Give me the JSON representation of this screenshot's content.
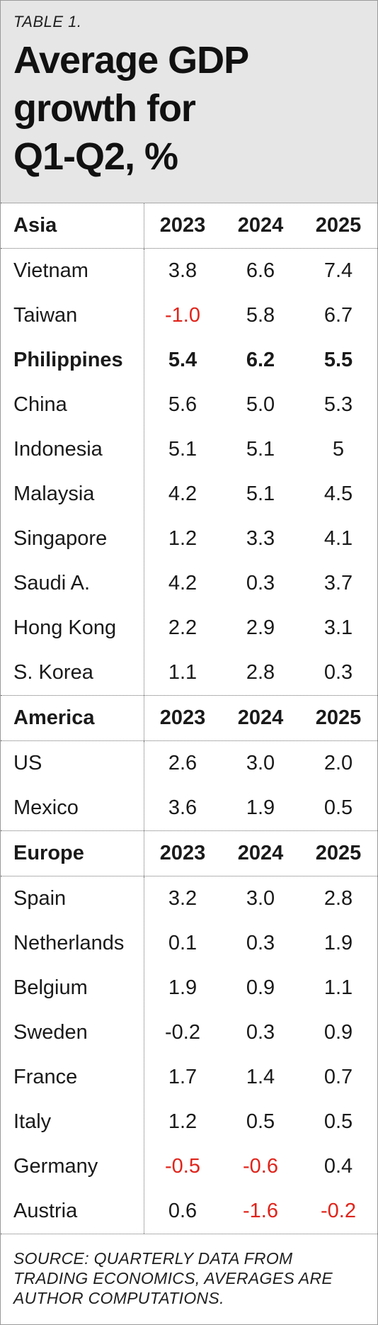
{
  "header": {
    "table_label": "TABLE 1.",
    "title_line1": "Average GDP",
    "title_line2": "growth for",
    "title_line3": "Q1-Q2, %"
  },
  "colors": {
    "header_bg": "#e6e6e6",
    "negative": "#e0241b",
    "text": "#1a1a1a"
  },
  "sections": [
    {
      "name": "Asia",
      "years": [
        "2023",
        "2024",
        "2025"
      ],
      "rows": [
        {
          "country": "Vietnam",
          "values": [
            "3.8",
            "6.6",
            "7.4"
          ]
        },
        {
          "country": "Taiwan",
          "values": [
            "-1.0",
            "5.8",
            "6.7"
          ]
        },
        {
          "country": "Philippines",
          "values": [
            "5.4",
            "6.2",
            "5.5"
          ]
        },
        {
          "country": "China",
          "values": [
            "5.6",
            "5.0",
            "5.3"
          ]
        },
        {
          "country": "Indonesia",
          "values": [
            "5.1",
            "5.1",
            "5"
          ]
        },
        {
          "country": "Malaysia",
          "values": [
            "4.2",
            "5.1",
            "4.5"
          ]
        },
        {
          "country": "Singapore",
          "values": [
            "1.2",
            "3.3",
            "4.1"
          ]
        },
        {
          "country": "Saudi A.",
          "values": [
            "4.2",
            "0.3",
            "3.7"
          ]
        },
        {
          "country": "Hong Kong",
          "values": [
            "2.2",
            "2.9",
            "3.1"
          ]
        },
        {
          "country": "S. Korea",
          "values": [
            "1.1",
            "2.8",
            "0.3"
          ]
        }
      ]
    },
    {
      "name": "America",
      "years": [
        "2023",
        "2024",
        "2025"
      ],
      "rows": [
        {
          "country": "US",
          "values": [
            "2.6",
            "3.0",
            "2.0"
          ]
        },
        {
          "country": "Mexico",
          "values": [
            "3.6",
            "1.9",
            "0.5"
          ]
        }
      ]
    },
    {
      "name": "Europe",
      "years": [
        "2023",
        "2024",
        "2025"
      ],
      "rows": [
        {
          "country": "Spain",
          "values": [
            "3.2",
            "3.0",
            "2.8"
          ]
        },
        {
          "country": "Netherlands",
          "values": [
            "0.1",
            "0.3",
            "1.9"
          ]
        },
        {
          "country": "Belgium",
          "values": [
            "1.9",
            "0.9",
            "1.1"
          ]
        },
        {
          "country": "Sweden",
          "values": [
            "-0.2",
            "0.3",
            "0.9"
          ]
        },
        {
          "country": "France",
          "values": [
            "1.7",
            "1.4",
            "0.7"
          ]
        },
        {
          "country": "Italy",
          "values": [
            "1.2",
            "0.5",
            "0.5"
          ]
        },
        {
          "country": "Germany",
          "values": [
            "-0.5",
            "-0.6",
            "0.4"
          ]
        },
        {
          "country": "Austria",
          "values": [
            "0.6",
            "-1.6",
            "-0.2"
          ]
        }
      ]
    }
  ],
  "source_note": "SOURCE: QUARTERLY DATA FROM TRADING ECONOMICS, AVERAGES ARE AUTHOR COMPUTATIONS."
}
